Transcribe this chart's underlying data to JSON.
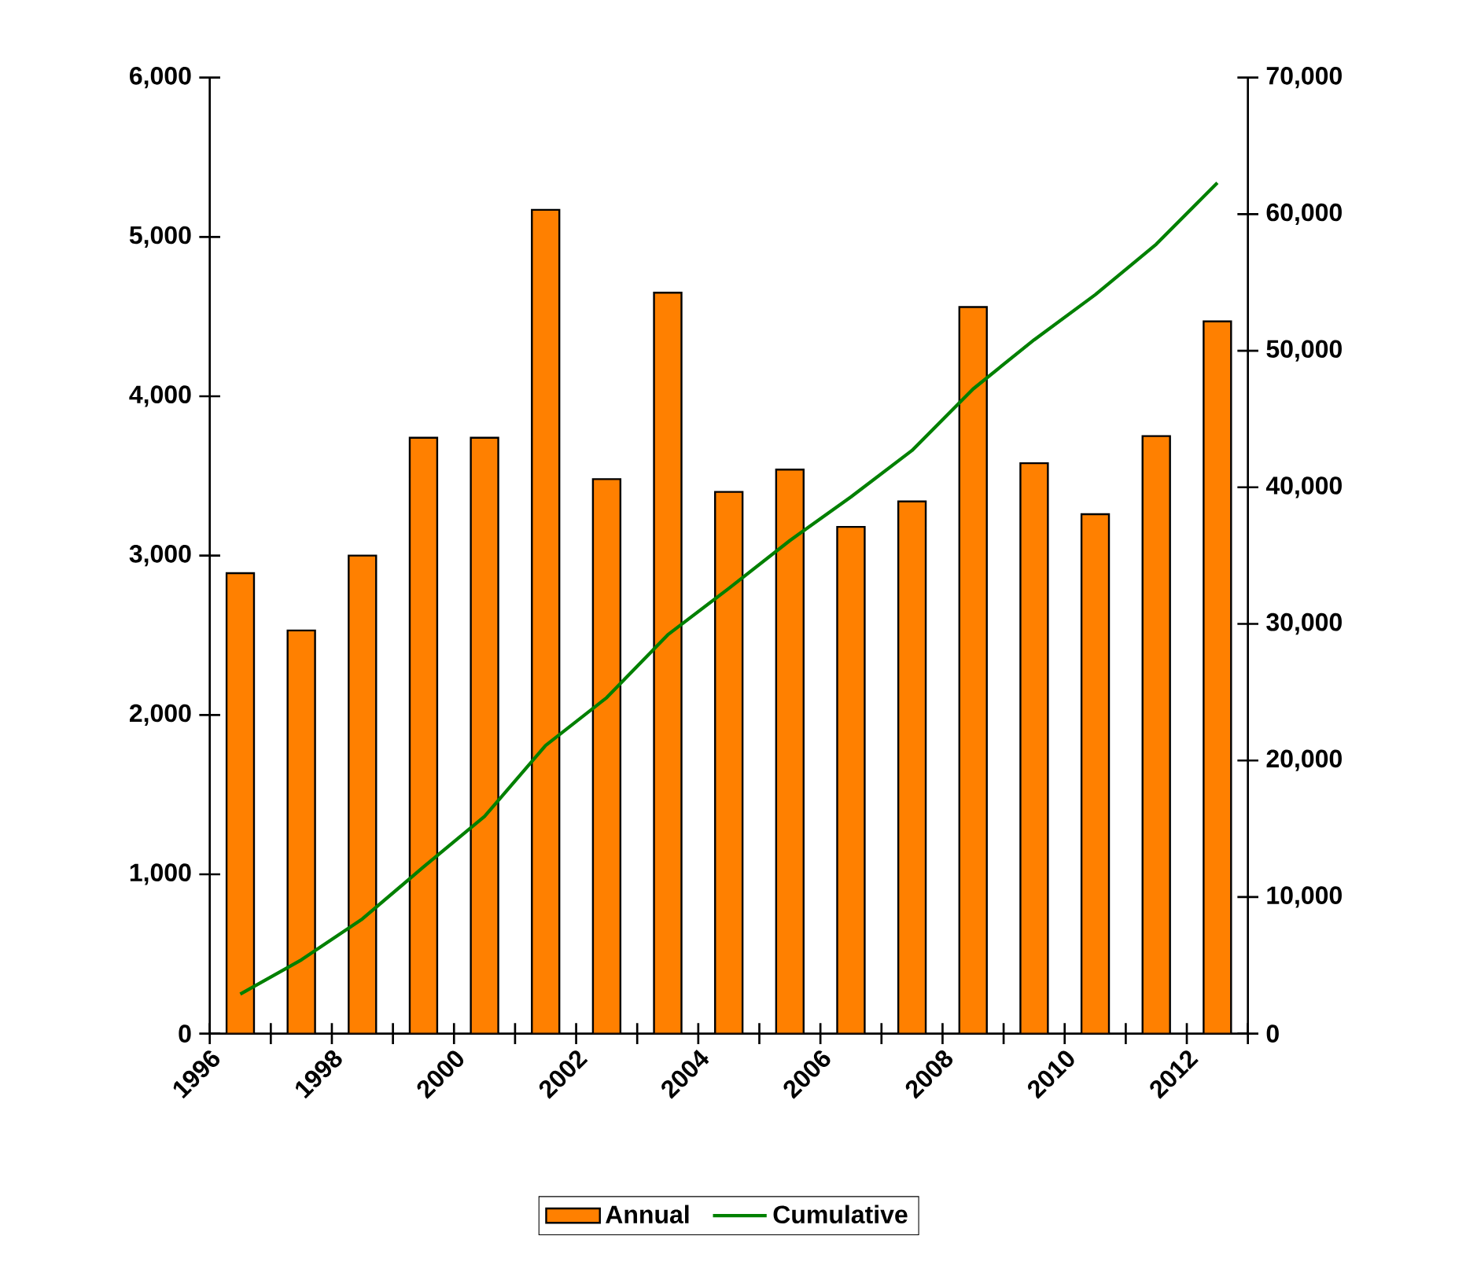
{
  "chart_data": {
    "type": "bar",
    "x": [
      1996.5,
      1997.5,
      1998.5,
      1999.5,
      2000.5,
      2001.5,
      2002.5,
      2003.5,
      2004.5,
      2005.5,
      2006.5,
      2007.5,
      2008.5,
      2009.5,
      2010.5,
      2011.5,
      2012.5
    ],
    "series": [
      {
        "name": "Annual",
        "color": "#ff8000",
        "values": [
          2890,
          2530,
          3000,
          3740,
          3740,
          5170,
          3480,
          4650,
          3400,
          3540,
          3180,
          3340,
          4560,
          3580,
          3260,
          3750,
          4470
        ]
      },
      {
        "name": "Cumulative",
        "type": "line",
        "axis": "y2",
        "color": "#008000",
        "values": [
          2900,
          5400,
          8400,
          12200,
          15900,
          21100,
          24600,
          29200,
          32600,
          36100,
          39300,
          42700,
          47200,
          50800,
          54100,
          57800,
          62300
        ]
      }
    ],
    "xlim": [
      1996,
      2013
    ],
    "xticks": [
      1996,
      {
        "value": 1997,
        "label": null
      },
      1998,
      {
        "value": 1999,
        "label": null
      },
      2000,
      {
        "value": 2001,
        "label": null
      },
      2002,
      {
        "value": 2003,
        "label": null
      },
      2004,
      {
        "value": 2005,
        "label": null
      },
      2006,
      {
        "value": 2007,
        "label": null
      },
      2008,
      {
        "value": 2009,
        "label": null
      },
      2010,
      {
        "value": 2011,
        "label": null
      },
      2012,
      {
        "value": 2013,
        "label": null
      }
    ],
    "ylim": [
      0,
      6000
    ],
    "yticks": [
      0,
      {
        "value": 1000,
        "label": "1,000"
      },
      {
        "value": 2000,
        "label": "2,000"
      },
      {
        "value": 3000,
        "label": "3,000"
      },
      {
        "value": 4000,
        "label": "4,000"
      },
      {
        "value": 5000,
        "label": "5,000"
      },
      {
        "value": 6000,
        "label": "6,000"
      }
    ],
    "y2lim": [
      0,
      70000
    ],
    "y2ticks": [
      0,
      {
        "value": 10000,
        "label": "10,000"
      },
      {
        "value": 20000,
        "label": "20,000"
      },
      {
        "value": 30000,
        "label": "30,000"
      },
      {
        "value": 40000,
        "label": "40,000"
      },
      {
        "value": 50000,
        "label": "50,000"
      },
      {
        "value": 60000,
        "label": "60,000"
      },
      {
        "value": 70000,
        "label": "70,000"
      }
    ],
    "legend": "bottom"
  }
}
